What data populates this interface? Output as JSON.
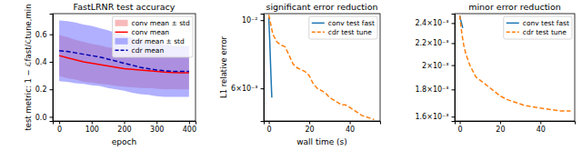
{
  "chart_data": [
    {
      "type": "line",
      "title": "FastLRNR test accuracy",
      "x_label": "epoch",
      "y_label": "test metric: 1 − ℒfast/ℒtune,min",
      "x": [
        0,
        25,
        50,
        75,
        100,
        125,
        150,
        175,
        200,
        225,
        250,
        275,
        300,
        325,
        350,
        375,
        400
      ],
      "xlim": [
        -20,
        420
      ],
      "xticks": [
        0,
        100,
        200,
        300,
        400
      ],
      "ylim": [
        -0.03,
        0.75
      ],
      "yticks": [
        {
          "value": 0,
          "label": "0.0"
        },
        0.2,
        0.4,
        0.6
      ],
      "legend": "upper right",
      "series": [
        {
          "name": "conv mean ± std",
          "type": "band",
          "color": "#f08080",
          "values": [
            0.445,
            0.43,
            0.415,
            0.4,
            0.39,
            0.38,
            0.37,
            0.36,
            0.35,
            0.345,
            0.34,
            0.335,
            0.33,
            0.325,
            0.322,
            0.32,
            0.32
          ],
          "std": [
            0.15,
            0.15,
            0.145,
            0.145,
            0.14,
            0.14,
            0.135,
            0.135,
            0.13,
            0.13,
            0.13,
            0.125,
            0.125,
            0.125,
            0.12,
            0.12,
            0.12
          ]
        },
        {
          "name": "conv mean",
          "type": "line",
          "color": "#ff0000",
          "line_style": "solid",
          "values": [
            0.445,
            0.43,
            0.415,
            0.4,
            0.39,
            0.38,
            0.37,
            0.36,
            0.35,
            0.345,
            0.34,
            0.335,
            0.33,
            0.325,
            0.322,
            0.32,
            0.32
          ]
        },
        {
          "name": "cdr mean ± std",
          "type": "band",
          "color": "#6f6fff",
          "values": [
            0.48,
            0.475,
            0.465,
            0.455,
            0.445,
            0.435,
            0.42,
            0.405,
            0.39,
            0.375,
            0.36,
            0.35,
            0.34,
            0.335,
            0.33,
            0.33,
            0.33
          ],
          "std": [
            0.22,
            0.22,
            0.22,
            0.215,
            0.215,
            0.21,
            0.21,
            0.205,
            0.2,
            0.2,
            0.195,
            0.19,
            0.19,
            0.19,
            0.185,
            0.185,
            0.185
          ]
        },
        {
          "name": "cdr mean",
          "type": "line",
          "color": "#0000b0",
          "line_style": "dashed",
          "values": [
            0.48,
            0.475,
            0.465,
            0.455,
            0.445,
            0.435,
            0.42,
            0.405,
            0.39,
            0.375,
            0.36,
            0.35,
            0.34,
            0.335,
            0.33,
            0.33,
            0.33
          ]
        }
      ]
    },
    {
      "type": "line",
      "title": "significant error reduction",
      "x_label": "wall time (s)",
      "y_label": "L1 relative error",
      "log": "y",
      "xlim": [
        -2.5,
        55
      ],
      "xticks": [
        0,
        20,
        40
      ],
      "ylim": [
        0.0047,
        0.0105
      ],
      "yticks": [
        {
          "value": 0.01,
          "label": "10⁻²"
        },
        {
          "value": 0.006,
          "label": "6×10⁻³"
        }
      ],
      "legend": "upper right",
      "series": [
        {
          "name": "conv test fast",
          "type": "line",
          "color": "#1f77b4",
          "line_style": "solid",
          "x": [
            0,
            0.5,
            1,
            1.5
          ],
          "values": [
            0.0102,
            0.0085,
            0.0068,
            0.0056
          ]
        },
        {
          "name": "cdr test tune",
          "type": "line",
          "color": "#ff7f0e",
          "line_style": "dashed",
          "x": [
            0,
            2,
            4,
            6,
            8,
            10,
            12,
            14,
            16,
            18,
            20,
            22,
            24,
            26,
            28,
            30,
            32,
            34,
            36,
            38,
            40,
            42,
            44,
            46,
            48,
            50,
            52
          ],
          "values": [
            0.0104,
            0.009,
            0.0085,
            0.0083,
            0.0082,
            0.0077,
            0.0072,
            0.007,
            0.0069,
            0.0068,
            0.0066,
            0.0062,
            0.006,
            0.0059,
            0.0058,
            0.0056,
            0.0055,
            0.0054,
            0.0053,
            0.0053,
            0.0052,
            0.0051,
            0.005,
            0.0049,
            0.00485,
            0.0048,
            0.00475
          ]
        }
      ]
    },
    {
      "type": "line",
      "title": "minor error reduction",
      "log": "y",
      "xlim": [
        -2.5,
        57
      ],
      "xticks": [
        0,
        20,
        40
      ],
      "ylim": [
        0.00157,
        0.0025
      ],
      "yticks": [
        {
          "value": 0.0016,
          "label": "1.6×10⁻³"
        },
        {
          "value": 0.0018,
          "label": "1.8×10⁻³"
        },
        {
          "value": 0.002,
          "label": "2×10⁻³"
        },
        {
          "value": 0.0022,
          "label": "2.2×10⁻³"
        },
        {
          "value": 0.0024,
          "label": "2.4×10⁻³"
        }
      ],
      "legend": "upper right",
      "series": [
        {
          "name": "conv test fast",
          "type": "line",
          "color": "#1f77b4",
          "line_style": "solid",
          "x": [
            0,
            0.5,
            1,
            1.5
          ],
          "values": [
            0.00248,
            0.00243,
            0.00239,
            0.00235
          ]
        },
        {
          "name": "cdr test tune",
          "type": "line",
          "color": "#ff7f0e",
          "line_style": "dashed",
          "x": [
            0,
            1,
            2,
            3,
            5,
            8,
            12,
            16,
            20,
            24,
            28,
            32,
            36,
            40,
            45,
            50,
            55
          ],
          "values": [
            0.00248,
            0.0023,
            0.00218,
            0.0021,
            0.002,
            0.0019,
            0.00185,
            0.0018,
            0.00175,
            0.00172,
            0.0017,
            0.00168,
            0.00167,
            0.00166,
            0.00165,
            0.00164,
            0.00164
          ]
        }
      ]
    }
  ]
}
